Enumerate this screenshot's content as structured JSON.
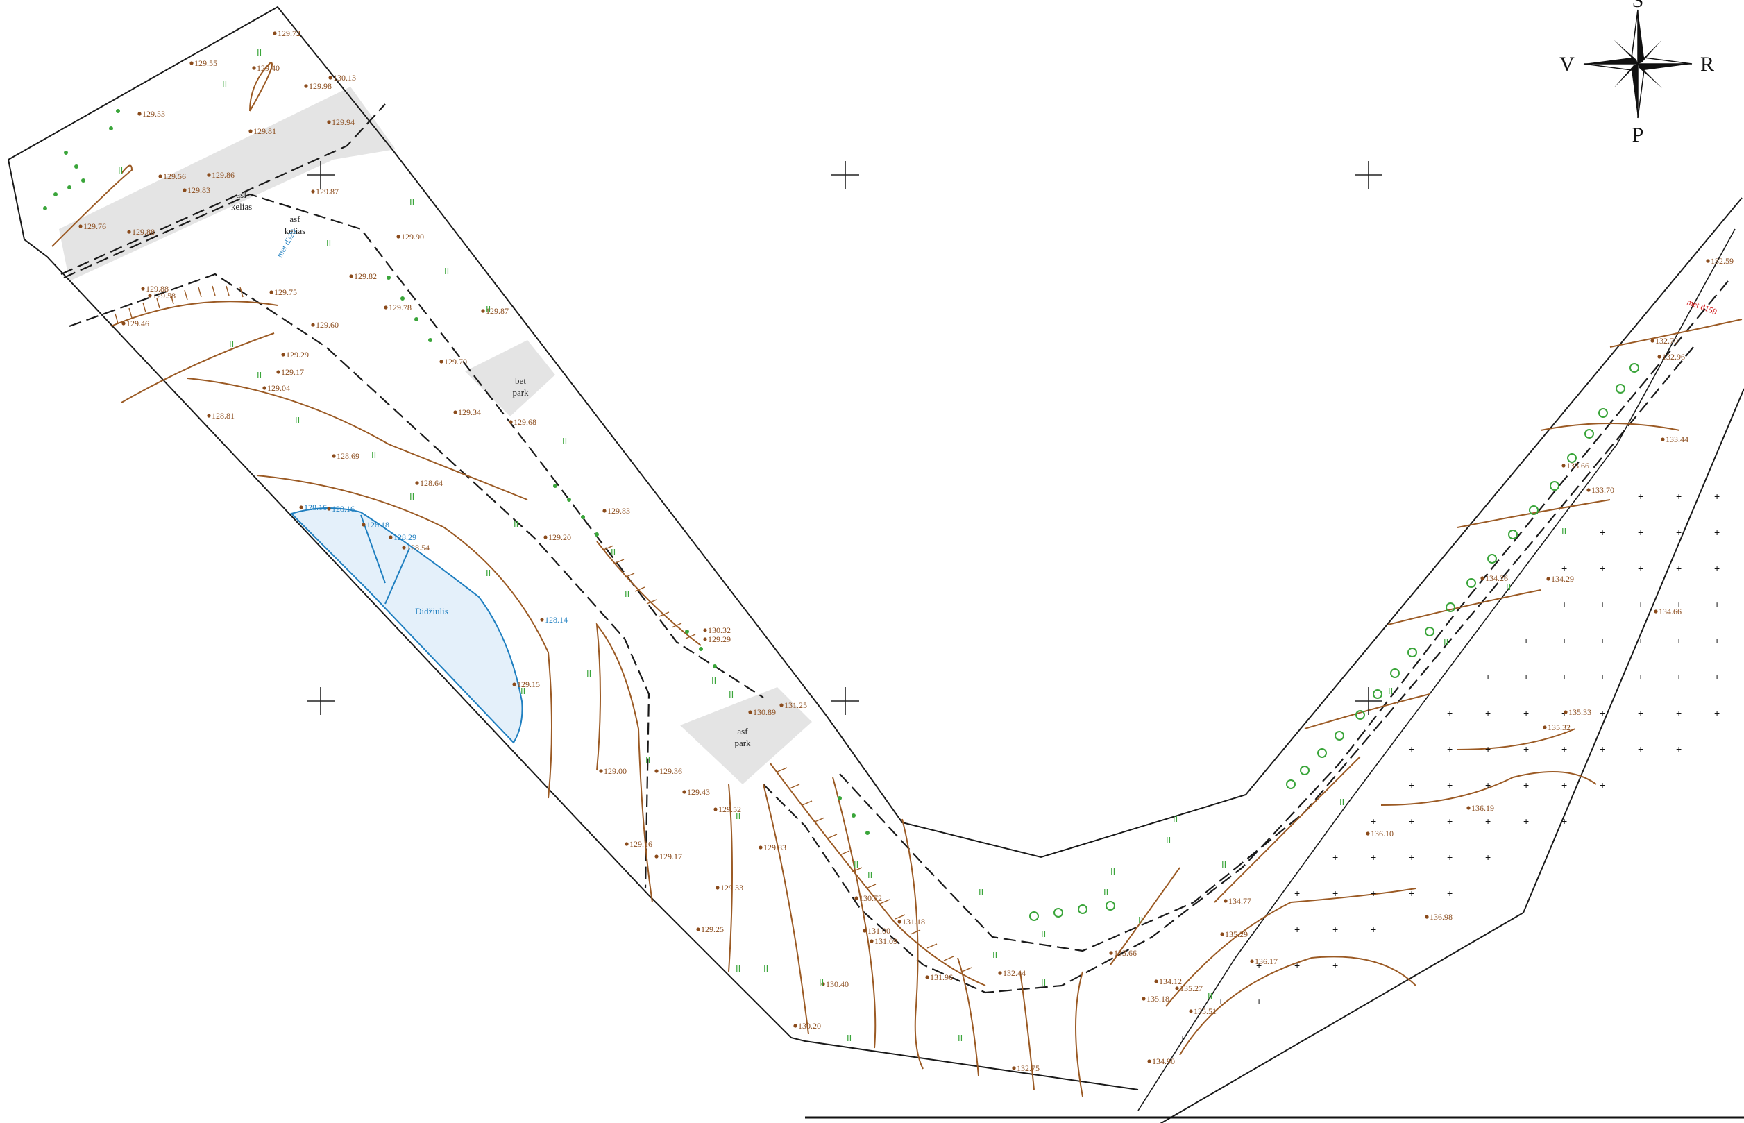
{
  "compass": {
    "north": "S",
    "east": "R",
    "south": "P",
    "west": "V"
  },
  "area_labels": {
    "road_material": "asf",
    "road_name": "kelias",
    "road_material_2": "asf",
    "road_name_2": "kelias",
    "parking_1_material": "bet",
    "parking_1_name": "park",
    "parking_2_material": "asf",
    "parking_2_name": "park",
    "pond_name": "Didžiulis",
    "pipe_label": "met d320",
    "red_label": "met d159"
  },
  "colors": {
    "contour": "#9b5a24",
    "water_fill": "#e4f0fa",
    "water_stroke": "#1f7fc0",
    "road_fill": "#e4e4e4",
    "vegetation": "#3aa53a",
    "spot_height": "#8a4a1a"
  },
  "grass_symbol": "II",
  "spot_heights": [
    "129.72",
    "129.55",
    "129.40",
    "130.13",
    "129.53",
    "129.98",
    "129.94",
    "129.81",
    "129.56",
    "129.86",
    "129.83",
    "129.87",
    "129.76",
    "129.88",
    "129.90",
    "129.70",
    "129.82",
    "129.78",
    "129.87",
    "129.75",
    "129.88",
    "129.58",
    "129.46",
    "129.60",
    "129.29",
    "129.17",
    "129.04",
    "128.81",
    "128.69",
    "129.34",
    "129.68",
    "129.83",
    "128.64",
    "128.16",
    "128.16",
    "128.18",
    "128.29",
    "128.54",
    "128.14",
    "129.15",
    "129.20",
    "130.32",
    "129.29",
    "130.89",
    "131.25",
    "129.00",
    "129.36",
    "129.43",
    "129.52",
    "129.16",
    "129.17",
    "129.83",
    "129.33",
    "129.25",
    "130.72",
    "131.00",
    "131.09",
    "131.18",
    "131.96",
    "132.44",
    "130.40",
    "130.20",
    "132.75",
    "133.66",
    "134.12",
    "135.18",
    "135.27",
    "135.51",
    "134.90",
    "134.77",
    "135.29",
    "136.17",
    "136.98",
    "136.10",
    "136.19",
    "135.33",
    "135.32",
    "134.66",
    "134.26",
    "134.29",
    "133.70",
    "133.66",
    "132.70",
    "132.96",
    "132.59",
    "133.44"
  ],
  "calculated": {
    "grid_rows": 3,
    "grid_cols": 3
  }
}
